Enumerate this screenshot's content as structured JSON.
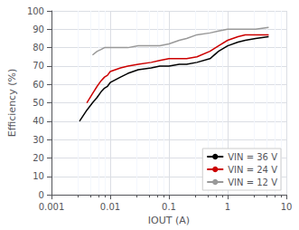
{
  "chart_data": {
    "type": "line",
    "xlabel": "IOUT (A)",
    "ylabel": "Efficiency (%)",
    "log": "x",
    "xlim": [
      0.001,
      10
    ],
    "xticks": [
      0.001,
      0.01,
      0.1,
      1,
      10
    ],
    "ylim": [
      0,
      100
    ],
    "yticks": [
      0,
      10,
      20,
      30,
      40,
      50,
      60,
      70,
      80,
      90,
      100
    ],
    "grid": true,
    "legend": "lower right",
    "series": [
      {
        "name": "VIN = 36 V",
        "color": "#000000",
        "x": [
          0.003,
          0.004,
          0.005,
          0.006,
          0.007,
          0.008,
          0.009,
          0.01,
          0.015,
          0.02,
          0.03,
          0.05,
          0.07,
          0.1,
          0.15,
          0.2,
          0.3,
          0.5,
          0.7,
          1.0,
          1.5,
          2.0,
          3.0,
          5.0
        ],
        "values": [
          40,
          46,
          50,
          53,
          56,
          58,
          59,
          61,
          64,
          66,
          68,
          69,
          70,
          70,
          71,
          71,
          72,
          74,
          78,
          81,
          83,
          84,
          85,
          86
        ]
      },
      {
        "name": "VIN = 24 V",
        "color": "#cc0000",
        "x": [
          0.004,
          0.005,
          0.006,
          0.007,
          0.008,
          0.009,
          0.01,
          0.015,
          0.02,
          0.03,
          0.05,
          0.07,
          0.1,
          0.15,
          0.2,
          0.3,
          0.5,
          0.7,
          1.0,
          1.5,
          2.0,
          3.0,
          5.0
        ],
        "values": [
          50,
          55,
          59,
          62,
          64,
          65,
          67,
          69,
          70,
          71,
          72,
          73,
          74,
          74,
          74,
          75,
          78,
          81,
          84,
          86,
          87,
          87,
          87
        ]
      },
      {
        "name": "VIN = 12 V",
        "color": "#999999",
        "x": [
          0.005,
          0.006,
          0.007,
          0.008,
          0.009,
          0.01,
          0.015,
          0.02,
          0.03,
          0.05,
          0.07,
          0.1,
          0.15,
          0.2,
          0.3,
          0.5,
          0.7,
          1.0,
          1.5,
          2.0,
          3.0,
          5.0
        ],
        "values": [
          76,
          78,
          79,
          80,
          80,
          80,
          80,
          80,
          81,
          81,
          81,
          82,
          84,
          85,
          87,
          88,
          89,
          90,
          90,
          90,
          90,
          91
        ]
      }
    ]
  }
}
